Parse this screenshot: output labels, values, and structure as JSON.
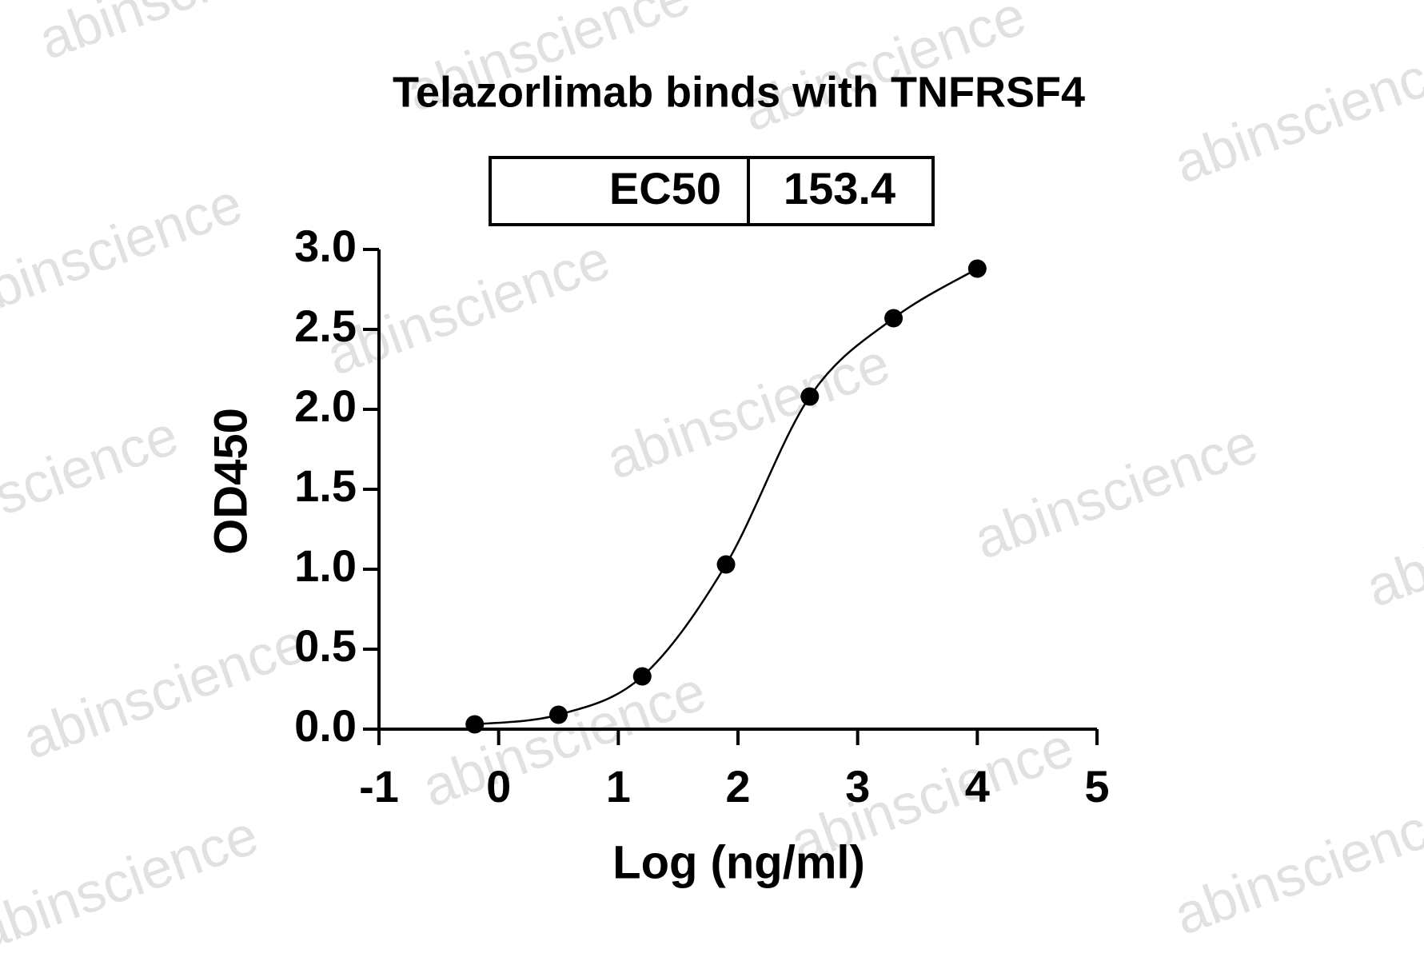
{
  "watermark": "abinscience",
  "chart_data": {
    "type": "scatter",
    "title": "Telazorlimab binds with TNFRSF4",
    "ec50_label": "EC50",
    "ec50_value": "153.4",
    "x_label": "Log (ng/ml)",
    "y_label": "OD450",
    "x": [
      -0.2,
      0.5,
      1.2,
      1.9,
      2.6,
      3.3,
      4.0
    ],
    "values": [
      0.03,
      0.09,
      0.33,
      1.03,
      2.08,
      2.57,
      2.88
    ],
    "color": "#000000",
    "xlim": [
      -1,
      5
    ],
    "xticks": [
      -1,
      0,
      1,
      2,
      3,
      4,
      5
    ],
    "ylim": [
      0,
      3
    ],
    "yticks": [
      {
        "value": 0,
        "label": "0.0"
      },
      {
        "value": 0.5,
        "label": "0.5"
      },
      {
        "value": 1,
        "label": "1.0"
      },
      {
        "value": 1.5,
        "label": "1.5"
      },
      {
        "value": 2,
        "label": "2.0"
      },
      {
        "value": 2.5,
        "label": "2.5"
      },
      {
        "value": 3,
        "label": "3.0"
      }
    ]
  }
}
